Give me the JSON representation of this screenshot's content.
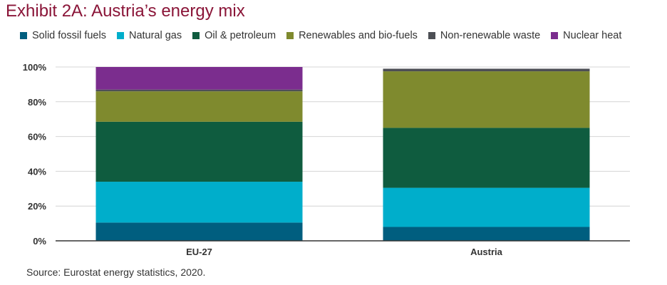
{
  "chart_data": {
    "type": "bar",
    "stacked": true,
    "title": "Exhibit 2A: Austria’s energy mix",
    "source": "Source: Eurostat energy statistics, 2020.",
    "categories": [
      "EU-27",
      "Austria"
    ],
    "ylim": [
      0,
      100
    ],
    "yticks": [
      "0%",
      "20%",
      "40%",
      "60%",
      "80%",
      "100%"
    ],
    "grid": true,
    "legend_position": "top",
    "series": [
      {
        "name": "Solid fossil fuels",
        "color": "#005e7f",
        "values": [
          10.5,
          8
        ]
      },
      {
        "name": "Natural gas",
        "color": "#00aecb",
        "values": [
          23.5,
          22.5
        ]
      },
      {
        "name": "Oil & petroleum",
        "color": "#0f5c3f",
        "values": [
          34.5,
          34.5
        ]
      },
      {
        "name": "Renewables and bio-fuels",
        "color": "#7f8a2e",
        "values": [
          17.5,
          32.5
        ]
      },
      {
        "name": "Non-renewable waste",
        "color": "#4d4f55",
        "values": [
          1,
          1.5
        ]
      },
      {
        "name": "Nuclear heat",
        "color": "#7b2d8e",
        "values": [
          13,
          0
        ]
      }
    ]
  }
}
